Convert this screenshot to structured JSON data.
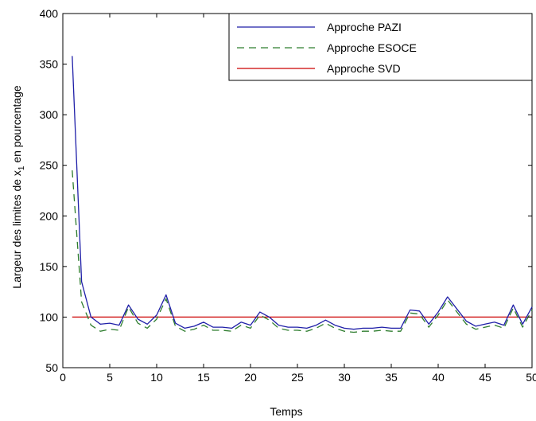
{
  "chart_data": {
    "type": "line",
    "title": "",
    "xlabel": "Temps",
    "ylabel_parts": [
      "Largeur des limites  de x",
      "1",
      " en pourcentage"
    ],
    "xlim": [
      0,
      50
    ],
    "ylim": [
      50,
      400
    ],
    "xticks": [
      0,
      5,
      10,
      15,
      20,
      25,
      30,
      35,
      40,
      45,
      50
    ],
    "yticks": [
      50,
      100,
      150,
      200,
      250,
      300,
      350,
      400
    ],
    "grid": false,
    "legend_position": "top-right",
    "x": [
      1,
      2,
      3,
      4,
      5,
      6,
      7,
      8,
      9,
      10,
      11,
      12,
      13,
      14,
      15,
      16,
      17,
      18,
      19,
      20,
      21,
      22,
      23,
      24,
      25,
      26,
      27,
      28,
      29,
      30,
      31,
      32,
      33,
      34,
      35,
      36,
      37,
      38,
      39,
      40,
      41,
      42,
      43,
      44,
      45,
      46,
      47,
      48,
      49,
      50
    ],
    "series": [
      {
        "name": "Approche PAZI",
        "color": "#1f1fa8",
        "dash": "solid",
        "values": [
          358,
          135,
          100,
          93,
          94,
          92,
          112,
          98,
          93,
          102,
          122,
          94,
          89,
          91,
          95,
          90,
          90,
          89,
          95,
          92,
          105,
          100,
          92,
          90,
          90,
          89,
          92,
          97,
          92,
          89,
          88,
          89,
          89,
          90,
          89,
          89,
          107,
          106,
          93,
          105,
          120,
          108,
          96,
          91,
          93,
          95,
          92,
          112,
          93,
          110
        ]
      },
      {
        "name": "Approche ESOCE",
        "color": "#2e7d2e",
        "dash": "dashed",
        "values": [
          245,
          115,
          92,
          86,
          88,
          87,
          110,
          94,
          89,
          98,
          118,
          91,
          86,
          88,
          92,
          87,
          87,
          86,
          92,
          89,
          102,
          97,
          89,
          87,
          87,
          86,
          89,
          94,
          89,
          86,
          85,
          86,
          86,
          87,
          86,
          86,
          104,
          103,
          90,
          102,
          117,
          105,
          93,
          88,
          90,
          92,
          89,
          109,
          90,
          107
        ]
      },
      {
        "name": "Approche SVD",
        "color": "#cc0000",
        "dash": "solid",
        "values": [
          100,
          100,
          100,
          100,
          100,
          100,
          100,
          100,
          100,
          100,
          100,
          100,
          100,
          100,
          100,
          100,
          100,
          100,
          100,
          100,
          100,
          100,
          100,
          100,
          100,
          100,
          100,
          100,
          100,
          100,
          100,
          100,
          100,
          100,
          100,
          100,
          100,
          100,
          100,
          100,
          100,
          100,
          100,
          100,
          100,
          100,
          100,
          100,
          100,
          100
        ]
      }
    ]
  }
}
